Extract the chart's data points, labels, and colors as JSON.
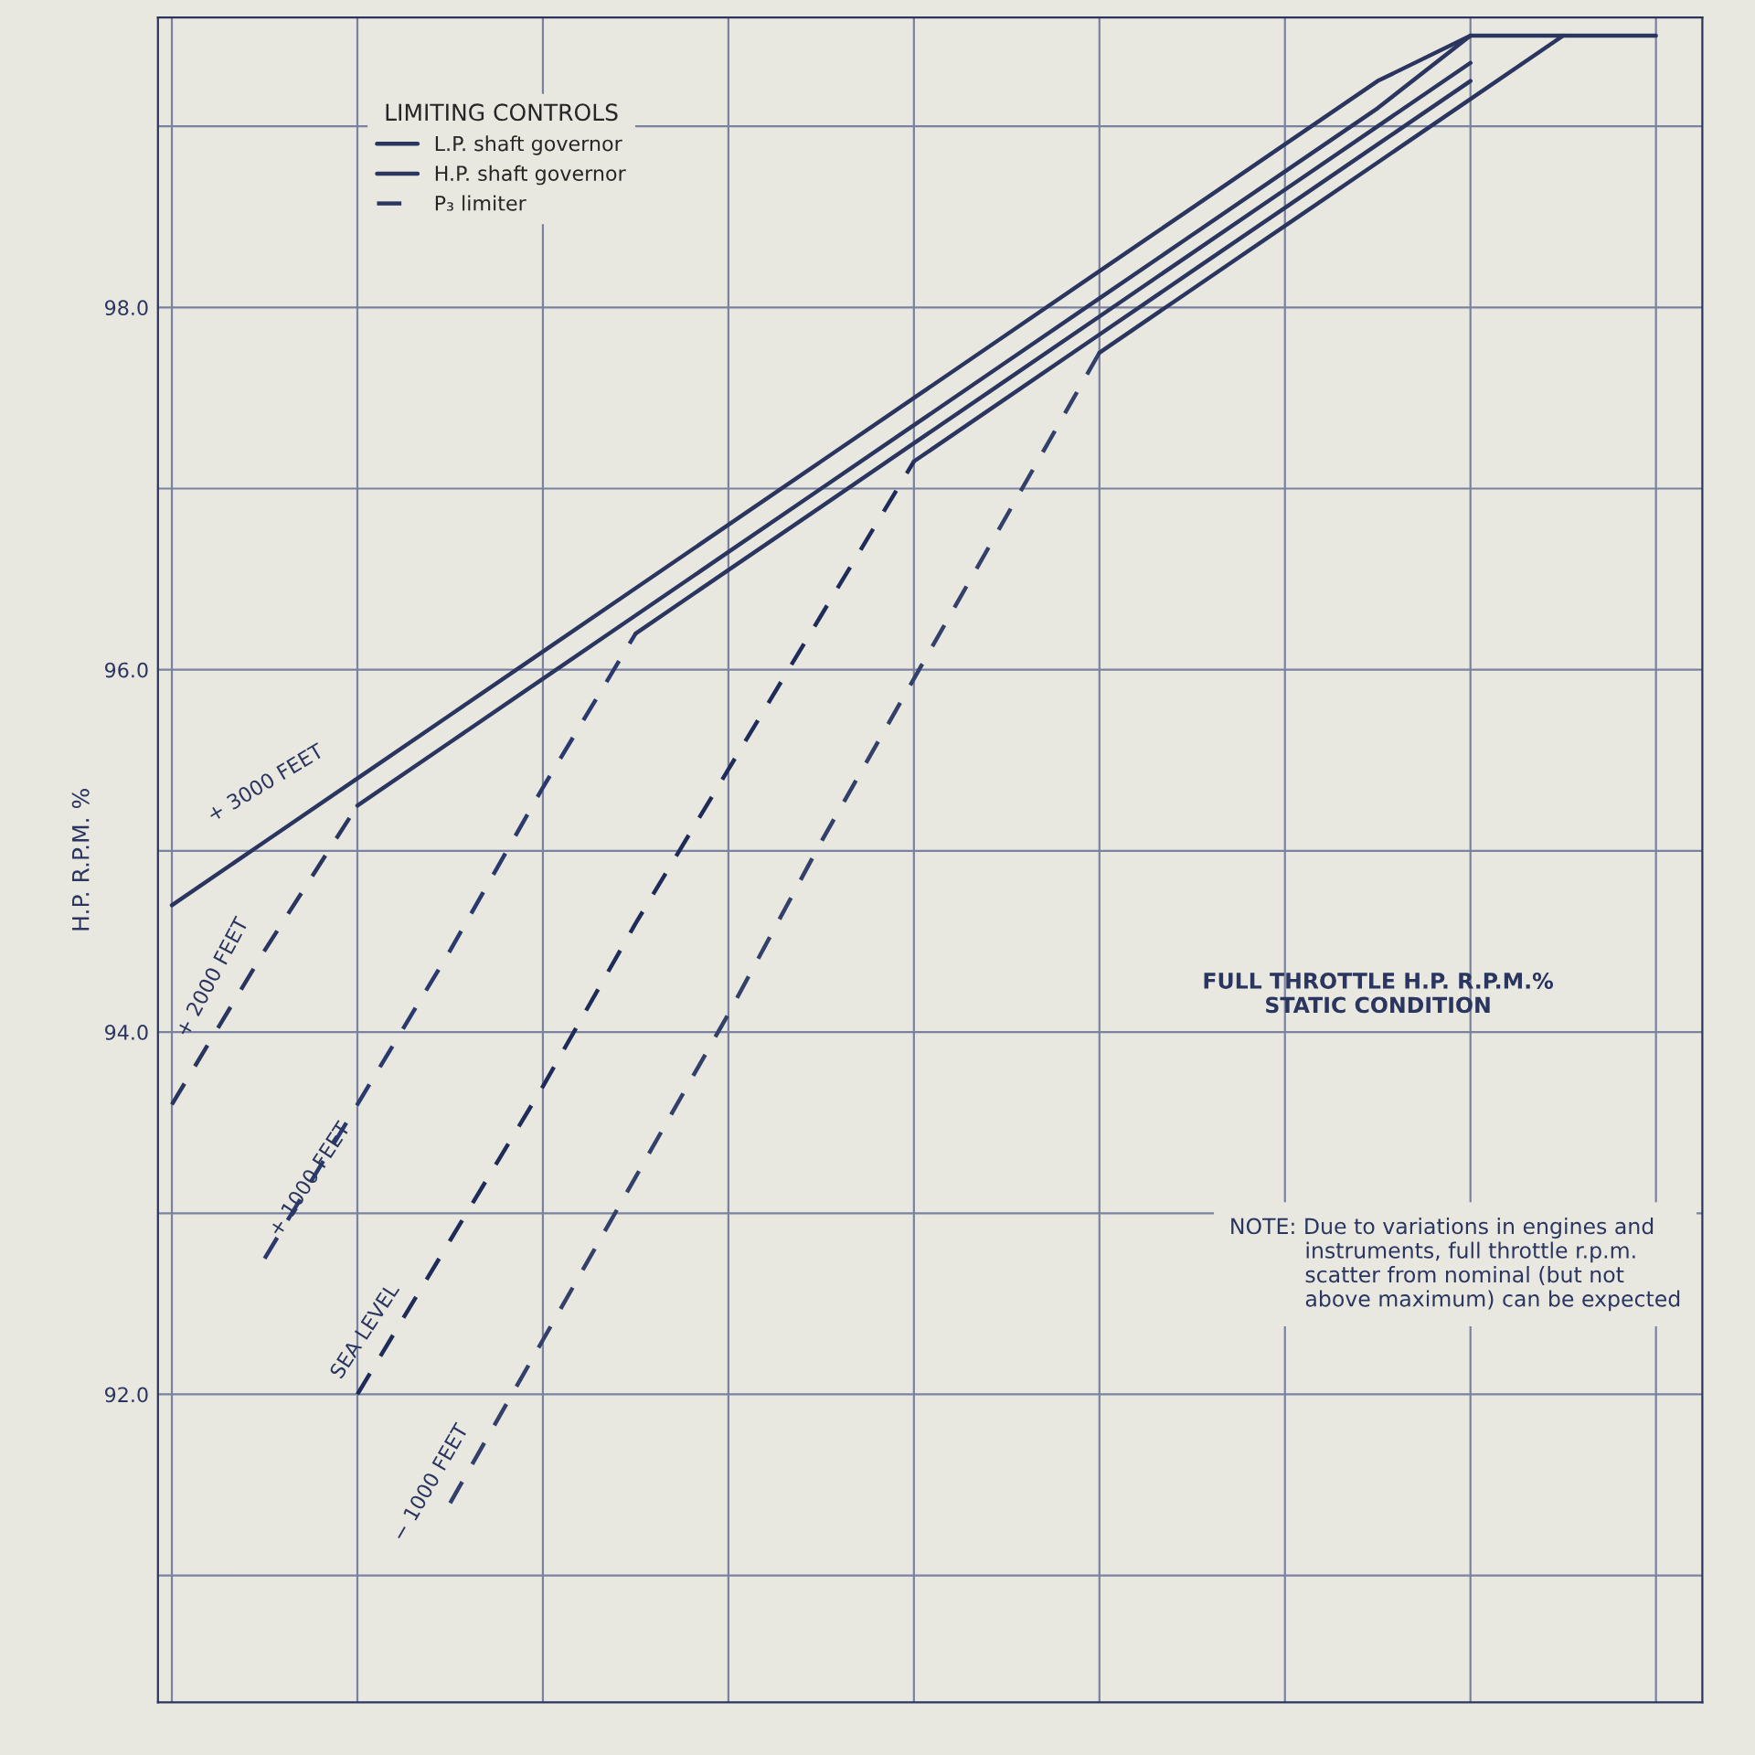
{
  "chart_data": {
    "type": "line",
    "ylabel": "H.P. R.P.M. %",
    "legend_title": "LIMITING CONTROLS",
    "categories": [
      null,
      null,
      null,
      null,
      null,
      null,
      null,
      null,
      null,
      null,
      null,
      null,
      null,
      null,
      null,
      null,
      null
    ],
    "series": [
      {
        "name": "L.P. shaft governor",
        "color": "#2a3560",
        "line_style": "solid",
        "values": [
          94.7,
          95.05,
          95.4,
          95.75,
          96.1,
          96.45,
          96.8,
          97.15,
          97.5,
          97.85,
          98.2,
          98.55,
          98.9,
          99.25,
          99.5,
          null,
          null
        ]
      },
      {
        "name": "H.P. shaft governor",
        "color": "#2a3560",
        "line_style": "solid",
        "values": [
          null,
          null,
          null,
          null,
          null,
          null,
          null,
          null,
          null,
          null,
          null,
          null,
          null,
          null,
          99.5,
          99.5,
          99.5
        ]
      },
      {
        "name": "P₃ limiter",
        "color": "#2a3560",
        "line_style": "dashed",
        "values": [
          93.6,
          94.45,
          95.25,
          null,
          null,
          null,
          null,
          null,
          null,
          null,
          null,
          null,
          null,
          null,
          null,
          null,
          null
        ]
      },
      {
        "color": "#2a3560",
        "line_style": "solid",
        "values": [
          null,
          null,
          95.25,
          95.6,
          95.95,
          96.3,
          96.65,
          97.0,
          97.35,
          97.7,
          98.05,
          98.4,
          98.75,
          99.1,
          99.5,
          null,
          null
        ]
      },
      {
        "color": "#2b3a6e",
        "line_style": "dashed",
        "values": [
          null,
          92.75,
          93.6,
          94.45,
          95.35,
          96.2,
          null,
          null,
          null,
          null,
          null,
          null,
          null,
          null,
          null,
          null,
          null
        ]
      },
      {
        "color": "#2a3560",
        "line_style": "solid",
        "values": [
          null,
          null,
          null,
          null,
          null,
          96.2,
          96.55,
          96.9,
          97.25,
          97.6,
          97.95,
          98.3,
          98.65,
          99.0,
          99.35,
          null,
          null
        ]
      },
      {
        "color": "#1f2c5a",
        "line_style": "dashed",
        "values": [
          null,
          null,
          92.0,
          92.85,
          93.7,
          94.6,
          95.45,
          96.3,
          97.15,
          null,
          null,
          null,
          null,
          null,
          null,
          null,
          null
        ]
      },
      {
        "color": "#2a3560",
        "line_style": "solid",
        "values": [
          null,
          null,
          null,
          null,
          null,
          null,
          null,
          null,
          97.15,
          97.5,
          97.85,
          98.2,
          98.55,
          98.9,
          99.25,
          null,
          null
        ]
      },
      {
        "color": "#33406a",
        "line_style": "dashed",
        "values": [
          null,
          null,
          null,
          91.4,
          92.3,
          93.2,
          94.1,
          95.05,
          95.95,
          96.85,
          97.75,
          null,
          null,
          null,
          null,
          null,
          null
        ]
      },
      {
        "color": "#2a3560",
        "line_style": "solid",
        "values": [
          null,
          null,
          null,
          null,
          null,
          null,
          null,
          null,
          null,
          null,
          97.75,
          98.1,
          98.45,
          98.8,
          99.15,
          99.5,
          null
        ]
      }
    ],
    "ylim": [
      90.3,
      99.6
    ],
    "yticks": [
      {
        "value": 91,
        "label": null
      },
      {
        "value": 92,
        "label": "92.0"
      },
      {
        "value": 93,
        "label": null
      },
      {
        "value": 94,
        "label": "94.0"
      },
      {
        "value": 95,
        "label": null
      },
      {
        "value": 96,
        "label": "96.0"
      },
      {
        "value": 97,
        "label": null
      },
      {
        "value": 98,
        "label": "98.0"
      },
      {
        "value": 99,
        "label": null
      }
    ],
    "grid": true,
    "legend": "top left",
    "tick_labels": "y",
    "annotations": [
      "+ 3000 FEET",
      "+ 2000 FEET",
      "+ 1000 FEET",
      "SEA LEVEL",
      "− 1000 FEET",
      "FULL THROTTLE H.P. R.P.M.%\nSTATIC CONDITION",
      "NOTE: Due to variations in engines and\n           instruments, full throttle r.p.m.\n           scatter from nominal (but not\n           above maximum) can be expected"
    ]
  }
}
